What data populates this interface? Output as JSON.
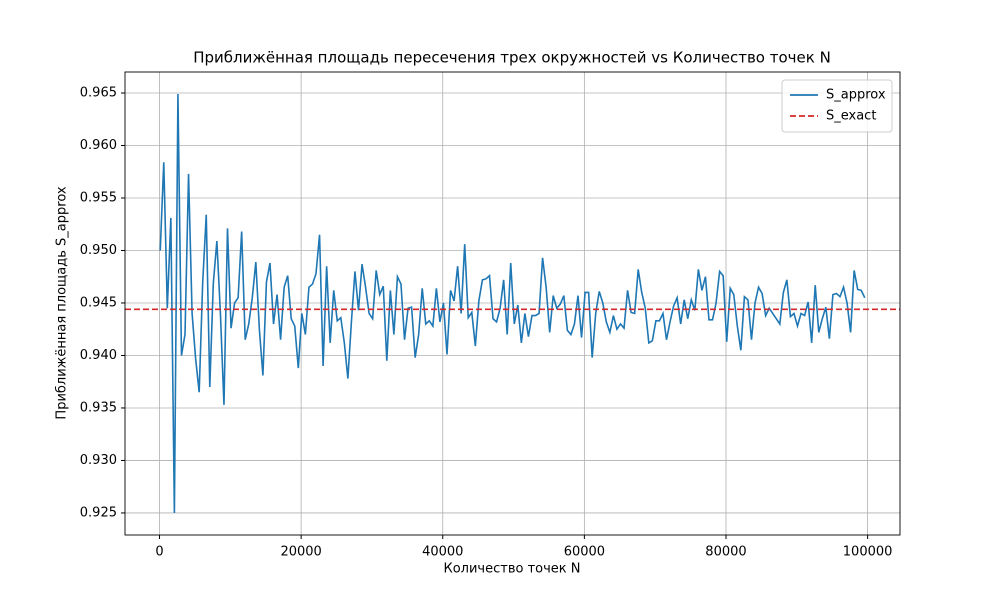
{
  "chart_data": {
    "type": "line",
    "title": "Приближённая площадь пересечения трех окружностей vs Количество точек N",
    "x_label": "Количество точек N",
    "y_label": "Приближённая площадь S_approx",
    "x": [
      100,
      600,
      1100,
      1600,
      2100,
      2600,
      3100,
      3600,
      4100,
      4600,
      5100,
      5600,
      6100,
      6600,
      7100,
      7600,
      8100,
      8600,
      9100,
      9600,
      10100,
      10600,
      11100,
      11600,
      12100,
      12600,
      13100,
      13600,
      14100,
      14600,
      15100,
      15600,
      16100,
      16600,
      17100,
      17600,
      18100,
      18600,
      19100,
      19600,
      20100,
      20600,
      21100,
      21600,
      22100,
      22600,
      23100,
      23600,
      24100,
      24600,
      25100,
      25600,
      26100,
      26600,
      27100,
      27600,
      28100,
      28600,
      29100,
      29600,
      30100,
      30600,
      31100,
      31600,
      32100,
      32600,
      33100,
      33600,
      34100,
      34600,
      35100,
      35600,
      36100,
      36600,
      37100,
      37600,
      38100,
      38600,
      39100,
      39600,
      40100,
      40600,
      41100,
      41600,
      42100,
      42600,
      43100,
      43600,
      44100,
      44600,
      45100,
      45600,
      46100,
      46600,
      47100,
      47600,
      48100,
      48600,
      49100,
      49600,
      50100,
      50600,
      51100,
      51600,
      52100,
      52600,
      53100,
      53600,
      54100,
      54600,
      55100,
      55600,
      56100,
      56600,
      57100,
      57600,
      58100,
      58600,
      59100,
      59600,
      60100,
      60600,
      61100,
      61600,
      62100,
      62600,
      63100,
      63600,
      64100,
      64600,
      65100,
      65600,
      66100,
      66600,
      67100,
      67600,
      68100,
      68600,
      69100,
      69600,
      70100,
      70600,
      71100,
      71600,
      72100,
      72600,
      73100,
      73600,
      74100,
      74600,
      75100,
      75600,
      76100,
      76600,
      77100,
      77600,
      78100,
      78600,
      79100,
      79600,
      80100,
      80600,
      81100,
      81600,
      82100,
      82600,
      83100,
      83600,
      84100,
      84600,
      85100,
      85600,
      86100,
      86600,
      87100,
      87600,
      88100,
      88600,
      89100,
      89600,
      90100,
      90600,
      91100,
      91600,
      92100,
      92600,
      93100,
      93600,
      94100,
      94600,
      95100,
      95600,
      96100,
      96600,
      97100,
      97600,
      98100,
      98600,
      99100,
      99600
    ],
    "series": [
      {
        "name": "S_approx",
        "color": "#1f77b4",
        "values": [
          0.95,
          0.9584,
          0.9445,
          0.9531,
          0.925,
          0.9649,
          0.94,
          0.942,
          0.9573,
          0.944,
          0.9397,
          0.9365,
          0.947,
          0.9534,
          0.937,
          0.9469,
          0.9509,
          0.944,
          0.9353,
          0.9521,
          0.9426,
          0.945,
          0.9455,
          0.9518,
          0.9415,
          0.943,
          0.9455,
          0.9489,
          0.9425,
          0.9381,
          0.947,
          0.9488,
          0.943,
          0.9458,
          0.9415,
          0.9465,
          0.9476,
          0.9435,
          0.9428,
          0.9388,
          0.944,
          0.942,
          0.9465,
          0.9468,
          0.9478,
          0.9515,
          0.939,
          0.9485,
          0.9412,
          0.9462,
          0.9433,
          0.9436,
          0.9412,
          0.9378,
          0.9432,
          0.948,
          0.9443,
          0.9487,
          0.9465,
          0.944,
          0.9435,
          0.9481,
          0.9458,
          0.9466,
          0.9395,
          0.9462,
          0.942,
          0.9475,
          0.9468,
          0.9415,
          0.9445,
          0.9446,
          0.9398,
          0.942,
          0.9464,
          0.943,
          0.9433,
          0.9428,
          0.9464,
          0.9432,
          0.945,
          0.9401,
          0.9462,
          0.9452,
          0.9485,
          0.944,
          0.9506,
          0.9436,
          0.9441,
          0.9409,
          0.9452,
          0.9472,
          0.9473,
          0.9476,
          0.9435,
          0.9432,
          0.9445,
          0.9472,
          0.942,
          0.9488,
          0.943,
          0.9448,
          0.9412,
          0.944,
          0.9418,
          0.9438,
          0.9438,
          0.944,
          0.9493,
          0.9465,
          0.9422,
          0.9457,
          0.9445,
          0.9449,
          0.9457,
          0.9424,
          0.942,
          0.943,
          0.9457,
          0.9417,
          0.946,
          0.946,
          0.9398,
          0.944,
          0.9461,
          0.945,
          0.9432,
          0.9422,
          0.9438,
          0.9425,
          0.943,
          0.9426,
          0.9462,
          0.9441,
          0.944,
          0.9482,
          0.946,
          0.9445,
          0.9412,
          0.9414,
          0.9433,
          0.9433,
          0.944,
          0.9415,
          0.9432,
          0.9447,
          0.9455,
          0.943,
          0.9453,
          0.9435,
          0.9453,
          0.9443,
          0.9482,
          0.9462,
          0.9475,
          0.9434,
          0.9434,
          0.945,
          0.948,
          0.9476,
          0.9413,
          0.9464,
          0.9458,
          0.9428,
          0.9405,
          0.9456,
          0.9453,
          0.9415,
          0.945,
          0.9465,
          0.9459,
          0.9438,
          0.9445,
          0.944,
          0.9435,
          0.943,
          0.946,
          0.9472,
          0.9437,
          0.944,
          0.9428,
          0.944,
          0.9438,
          0.9451,
          0.9412,
          0.9467,
          0.9422,
          0.9435,
          0.9446,
          0.9416,
          0.9458,
          0.9459,
          0.9456,
          0.9465,
          0.945,
          0.9422,
          0.9481,
          0.9463,
          0.9462,
          0.9455
        ]
      }
    ],
    "reference_line": {
      "name": "S_exact",
      "value": 0.9444,
      "color": "#d62728",
      "style": "dashed"
    },
    "xlim": [
      -4875,
      104575
    ],
    "ylim": [
      0.9229,
      0.967
    ],
    "xticks": [
      0,
      20000,
      40000,
      60000,
      80000,
      100000
    ],
    "yticks": [
      0.925,
      {
        "value": 0.93,
        "label": "0.930"
      },
      0.935,
      {
        "value": 0.94,
        "label": "0.940"
      },
      0.945,
      {
        "value": 0.95,
        "label": "0.950"
      },
      0.955,
      {
        "value": 0.96,
        "label": "0.960"
      },
      0.965
    ],
    "grid": true,
    "legend": "upper right"
  }
}
